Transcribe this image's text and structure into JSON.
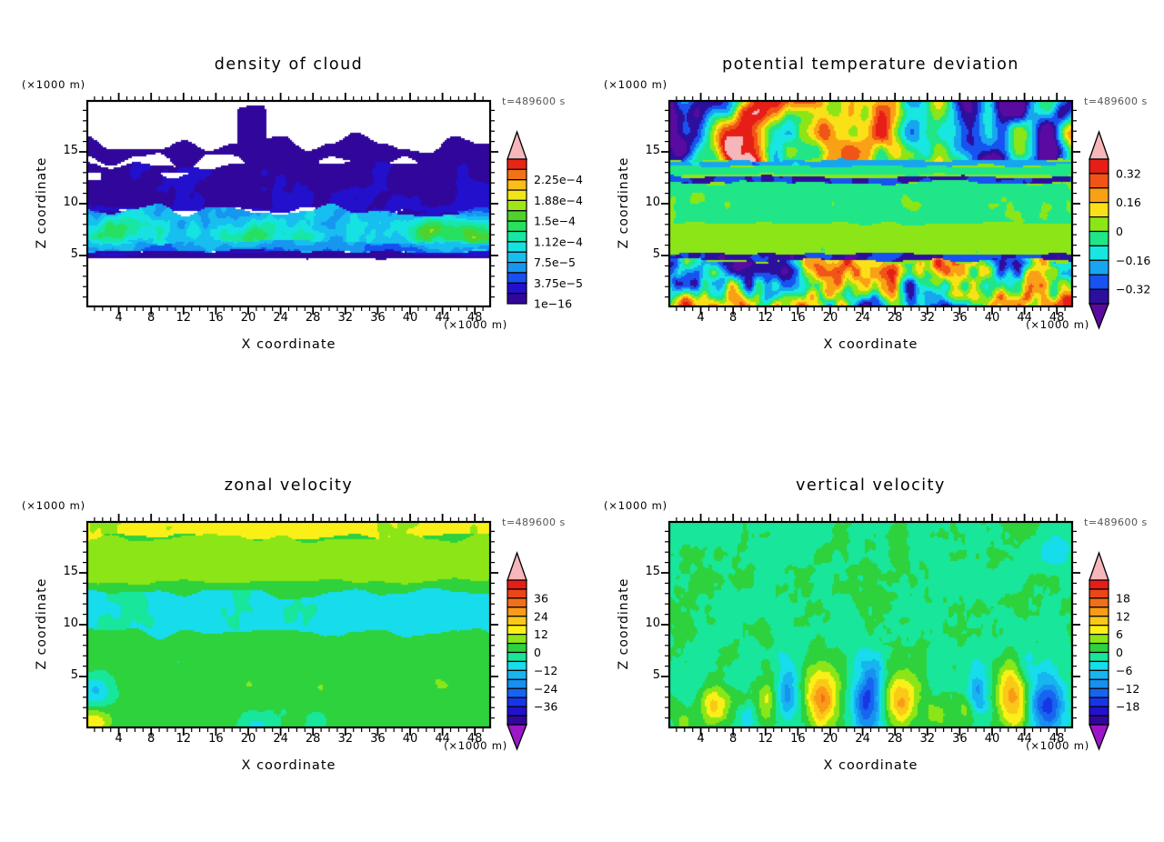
{
  "page": {
    "background": "#ffffff",
    "text_color": "#000000",
    "time_label_color": "#555555"
  },
  "chart_data": {
    "type": "heatmap",
    "layout": "2x2 filled contour cross-sections",
    "panels": [
      {
        "title": "density of cloud",
        "time_label": "t=489600 s",
        "x_label": "X coordinate",
        "x_unit": "(×1000 m)",
        "z_label": "Z coordinate",
        "z_unit": "(×1000 m)",
        "x_range": [
          0,
          50
        ],
        "z_range": [
          0,
          20
        ],
        "x_major_ticks": [
          4,
          8,
          12,
          16,
          20,
          24,
          28,
          32,
          36,
          40,
          44,
          48
        ],
        "z_major_ticks": [
          5,
          10,
          15
        ],
        "minor_tick_step": 1,
        "colorbar": {
          "vmin": 0,
          "vstep": 1.875e-05,
          "nseg": 14,
          "colors": [
            "#31079b",
            "#2310cd",
            "#1750f0",
            "#1796f0",
            "#17bef0",
            "#17e2e2",
            "#17e6a5",
            "#28e05f",
            "#50d22d",
            "#a0e617",
            "#f0e617",
            "#fabe17",
            "#f07317",
            "#e62517"
          ],
          "top_arrow": "#f6b6ba",
          "bottom_arrow": null,
          "labels": [
            {
              "text": "2.25e−4",
              "b": 12
            },
            {
              "text": "1.88e−4",
              "b": 10
            },
            {
              "text": "1.5e−4",
              "b": 8
            },
            {
              "text": "1.12e−4",
              "b": 6
            },
            {
              "text": "7.5e−5",
              "b": 4
            },
            {
              "text": "3.75e−5",
              "b": 2
            },
            {
              "text": "1e−16",
              "b": 0
            }
          ]
        },
        "field": {
          "seed": 11,
          "white_below": 1e-06,
          "base": {
            "v": -1e-05,
            "na": 0,
            "scale": 0.3
          },
          "layers": [
            {
              "z0": 13.8,
              "z1": 15.9,
              "v": 1.1e-05,
              "na": 6e-06,
              "scale": 0.35,
              "wob": 1.2
            },
            {
              "z0": 15.5,
              "z1": 19.3,
              "x0": 19.2,
              "x1": 22.4,
              "v": 1.3e-05,
              "na": 4e-06,
              "scale": 0.3,
              "wob": 0.8
            },
            {
              "z0": 9.25,
              "z1": 13.85,
              "v": 1.5e-05,
              "na": 1.3e-05,
              "scale": 0.3,
              "wob": 0.55
            },
            {
              "z0": 5.3,
              "z1": 9.35,
              "v": 7e-05,
              "na": 5e-05,
              "scale": 0.33,
              "wob": 0.7
            },
            {
              "z0": 5.35,
              "z1": 6.3,
              "v": 4.5e-05,
              "na": 3e-05,
              "scale": 0.4,
              "wob": 0.3
            },
            {
              "z0": 4.72,
              "z1": 5.35,
              "v": 9e-06,
              "na": 2e-06,
              "scale": 0.3,
              "wob": 0.1
            }
          ],
          "spots": [
            {
              "z0": 12.2,
              "z1": 12.95,
              "x0": 0,
              "x1": 14,
              "th": 0.58,
              "v": -1e-05,
              "scale": 0.3
            },
            {
              "z0": 12.25,
              "z1": 12.8,
              "x0": 24,
              "x1": 34,
              "th": 0.72,
              "v": -1e-05,
              "scale": 0.35
            }
          ],
          "bumps": [
            [
              3,
              7.2,
              8e-05,
              3.5,
              1.1
            ],
            [
              14,
              6.8,
              4e-05,
              2.5,
              0.9
            ],
            [
              20.5,
              7,
              5e-05,
              2.5,
              1
            ],
            [
              27,
              6.9,
              4e-05,
              2,
              0.8
            ],
            [
              33,
              6.5,
              3e-05,
              2,
              0.8
            ],
            [
              42,
              7.4,
              9e-05,
              3,
              1.1
            ],
            [
              48.5,
              7.2,
              8e-05,
              2.5,
              1.1
            ]
          ]
        }
      },
      {
        "title": "potential temperature deviation",
        "time_label": "t=489600 s",
        "x_label": "X coordinate",
        "x_unit": "(×1000 m)",
        "z_label": "Z coordinate",
        "z_unit": "(×1000 m)",
        "x_range": [
          0,
          50
        ],
        "z_range": [
          0,
          20
        ],
        "x_major_ticks": [
          4,
          8,
          12,
          16,
          20,
          24,
          28,
          32,
          36,
          40,
          44,
          48
        ],
        "z_major_ticks": [
          5,
          10,
          15
        ],
        "minor_tick_step": 1,
        "colorbar": {
          "vmin": -0.4,
          "vstep": 0.08,
          "nseg": 10,
          "colors": [
            "#2d0f9e",
            "#1753f0",
            "#17a5f0",
            "#17e6e1",
            "#20e687",
            "#8ce617",
            "#fae117",
            "#faa017",
            "#f05517",
            "#e61e17"
          ],
          "top_arrow": "#f6b6ba",
          "bottom_arrow": "#5a0aa0",
          "labels": [
            {
              "text": "0.32",
              "b": 9
            },
            {
              "text": "0.16",
              "b": 7
            },
            {
              "text": "0",
              "b": 5
            },
            {
              "text": "−0.16",
              "b": 3
            },
            {
              "text": "−0.32",
              "b": 1
            }
          ]
        },
        "field": {
          "seed": 22,
          "base": {
            "v": 0.03,
            "na": 0.04,
            "scale": 0.3
          },
          "layers": [
            {
              "z0": 14.05,
              "z1": 20.8,
              "v": -0.02,
              "na": 0.9,
              "scale": 0.13,
              "wob": 0.3
            },
            {
              "z0": 13.6,
              "z1": 14.15,
              "v": -0.2,
              "na": 0.08,
              "scale": 0.3,
              "wob": 0.25
            },
            {
              "z0": 12.8,
              "z1": 13.6,
              "v": -0.03,
              "na": 0.04,
              "scale": 0.3,
              "wob": 0.2
            },
            {
              "z0": 12.0,
              "z1": 12.55,
              "v": -0.33,
              "na": 0.1,
              "scale": 0.35,
              "wob": 0.22
            },
            {
              "z0": 8.0,
              "z1": 12.0,
              "v": -0.02,
              "na": 0.05,
              "scale": 0.3,
              "wob": 0.3
            },
            {
              "z0": 5.15,
              "z1": 8.0,
              "v": 0.03,
              "na": 0.055,
              "scale": 0.32,
              "wob": 0.3
            },
            {
              "z0": 4.45,
              "z1": 5.15,
              "v": -0.34,
              "na": 0.12,
              "scale": 0.4,
              "wob": 0.18
            },
            {
              "z0": 0,
              "z1": 4.45,
              "v": 0.0,
              "na": 0.8,
              "scale": 0.22,
              "wob": 0.3
            }
          ],
          "spots": [
            {
              "z0": 12.0,
              "z1": 12.6,
              "th": 0.78,
              "v": 0.46,
              "scale": 0.2
            },
            {
              "z0": 4.4,
              "z1": 5.2,
              "th": 0.77,
              "v": 0.46,
              "scale": 0.22
            },
            {
              "z0": 0,
              "z1": 4.45,
              "th": 0.85,
              "v": 0.5,
              "scale": 0.18
            },
            {
              "z0": 5.15,
              "z1": 12.0,
              "th": 0.97,
              "v": 0.3,
              "scale": 0.55
            },
            {
              "z0": 5.15,
              "z1": 12.0,
              "th": 0.05,
              "v": -0.12,
              "scale": 0.3,
              "lo": true
            }
          ],
          "bumps": []
        }
      },
      {
        "title": "zonal velocity",
        "time_label": "t=489600 s",
        "x_label": "X coordinate",
        "x_unit": "(×1000 m)",
        "z_label": "Z coordinate",
        "z_unit": "(×1000 m)",
        "x_range": [
          0,
          50
        ],
        "z_range": [
          0,
          20
        ],
        "x_major_ticks": [
          4,
          8,
          12,
          16,
          20,
          24,
          28,
          32,
          36,
          40,
          44,
          48
        ],
        "z_major_ticks": [
          5,
          10,
          15
        ],
        "minor_tick_step": 1,
        "colorbar": {
          "vmin": -48,
          "vstep": 6,
          "nseg": 16,
          "colors": [
            "#31079b",
            "#2310cd",
            "#1736e6",
            "#1764f0",
            "#1790f0",
            "#17b4f0",
            "#17dcec",
            "#17e69b",
            "#2ed23c",
            "#8ce617",
            "#faf017",
            "#fac817",
            "#fa9b17",
            "#f07017",
            "#eb4617",
            "#e61e17"
          ],
          "top_arrow": "#f6b6ba",
          "bottom_arrow": "#9b17c8",
          "labels": [
            {
              "text": "36",
              "b": 14
            },
            {
              "text": "24",
              "b": 12
            },
            {
              "text": "12",
              "b": 10
            },
            {
              "text": "0",
              "b": 8
            },
            {
              "text": "−12",
              "b": 6
            },
            {
              "text": "−24",
              "b": 4
            },
            {
              "text": "−36",
              "b": 2
            }
          ]
        },
        "field": {
          "seed": 33,
          "base": {
            "v": 3,
            "na": 2,
            "scale": 0.3
          },
          "layers": [
            {
              "z0": 18.4,
              "z1": 20.6,
              "v": 13,
              "na": 2.5,
              "scale": 0.3,
              "wob": 0.5
            },
            {
              "z0": 14.0,
              "z1": 18.4,
              "v": 8,
              "na": 2.4,
              "scale": 0.24,
              "wob": 0.6
            },
            {
              "z0": 13.1,
              "z1": 14.0,
              "v": 2.5,
              "na": 1.2,
              "scale": 0.3,
              "wob": 0.35
            },
            {
              "z0": 8.95,
              "z1": 13.1,
              "v": -7,
              "na": 3.2,
              "scale": 0.26,
              "wob": 0.7
            },
            {
              "z0": 0,
              "z1": 8.95,
              "v": 1.8,
              "na": 2.8,
              "scale": 0.3,
              "wob": 0.8
            }
          ],
          "spots": [],
          "bumps": [
            [
              1.2,
              3.6,
              -15,
              1.5,
              1.0
            ],
            [
              0.8,
              0.5,
              16,
              1.6,
              0.9
            ],
            [
              21,
              0.3,
              -9,
              1.3,
              0.8
            ],
            [
              28.5,
              0.8,
              -5,
              1.1,
              0.7
            ],
            [
              20,
              4.3,
              4,
              1.6,
              1
            ],
            [
              29,
              4,
              4,
              1.6,
              1
            ],
            [
              34.5,
              5,
              3.5,
              1.6,
              1
            ],
            [
              44,
              4.3,
              4,
              2,
              1.2
            ],
            [
              9,
              2.3,
              3.5,
              1.5,
              1
            ],
            [
              47.5,
              2.5,
              3,
              1.5,
              1
            ],
            [
              24,
              6.5,
              3,
              1.5,
              0.9
            ]
          ]
        }
      },
      {
        "title": "vertical velocity",
        "time_label": "t=489600 s",
        "x_label": "X coordinate",
        "x_unit": "(×1000 m)",
        "z_label": "Z coordinate",
        "z_unit": "(×1000 m)",
        "x_range": [
          0,
          50
        ],
        "z_range": [
          0,
          20
        ],
        "x_major_ticks": [
          4,
          8,
          12,
          16,
          20,
          24,
          28,
          32,
          36,
          40,
          44,
          48
        ],
        "z_major_ticks": [
          5,
          10,
          15
        ],
        "minor_tick_step": 1,
        "colorbar": {
          "vmin": -24,
          "vstep": 3,
          "nseg": 16,
          "colors": [
            "#31079b",
            "#2310cd",
            "#1736e6",
            "#1764f0",
            "#1790f0",
            "#17b4f0",
            "#17dcec",
            "#17e69b",
            "#2ed23c",
            "#8ce617",
            "#faf017",
            "#fac817",
            "#fa9b17",
            "#f07017",
            "#eb4617",
            "#e61e17"
          ],
          "top_arrow": "#f6b6ba",
          "bottom_arrow": "#9b17c8",
          "labels": [
            {
              "text": "18",
              "b": 14
            },
            {
              "text": "12",
              "b": 12
            },
            {
              "text": "6",
              "b": 10
            },
            {
              "text": "0",
              "b": 8
            },
            {
              "text": "−6",
              "b": 6
            },
            {
              "text": "−12",
              "b": 4
            },
            {
              "text": "−18",
              "b": 2
            }
          ]
        },
        "field": {
          "seed": 44,
          "base": {
            "v": -0.5,
            "na": 3.0,
            "scale": 0.42
          },
          "layers": [],
          "spots": [
            {
              "z0": 4,
              "z1": 20,
              "th": 0.06,
              "v": -4.5,
              "scale": 0.3,
              "lo": true
            }
          ],
          "bumps": [
            [
              5.5,
              2.2,
              10,
              1.2,
              1.4
            ],
            [
              12.2,
              2.6,
              6,
              0.9,
              1.3
            ],
            [
              19,
              3.0,
              14,
              1.4,
              2.1
            ],
            [
              28.8,
              2.8,
              12,
              1.3,
              1.9
            ],
            [
              33.2,
              1.4,
              5,
              0.9,
              1.0
            ],
            [
              42.5,
              3.2,
              14,
              1.4,
              2.2
            ],
            [
              36.8,
              1.6,
              4,
              0.8,
              1.0
            ],
            [
              1.6,
              1.0,
              4,
              0.9,
              0.9
            ],
            [
              14.8,
              3.6,
              -9,
              0.9,
              1.8
            ],
            [
              24.6,
              2.6,
              -15,
              1.2,
              2.2
            ],
            [
              25.6,
              5.6,
              -5,
              0.8,
              1.2
            ],
            [
              38.3,
              3.4,
              -8,
              0.9,
              1.6
            ],
            [
              46.8,
              2.2,
              -15,
              1.4,
              2.2
            ],
            [
              44.2,
              6.0,
              -5,
              0.9,
              1.3
            ],
            [
              9.8,
              1.4,
              -4,
              0.8,
              1.0
            ],
            [
              47.5,
              17,
              -4,
              1.6,
              1.3
            ]
          ]
        }
      }
    ]
  }
}
